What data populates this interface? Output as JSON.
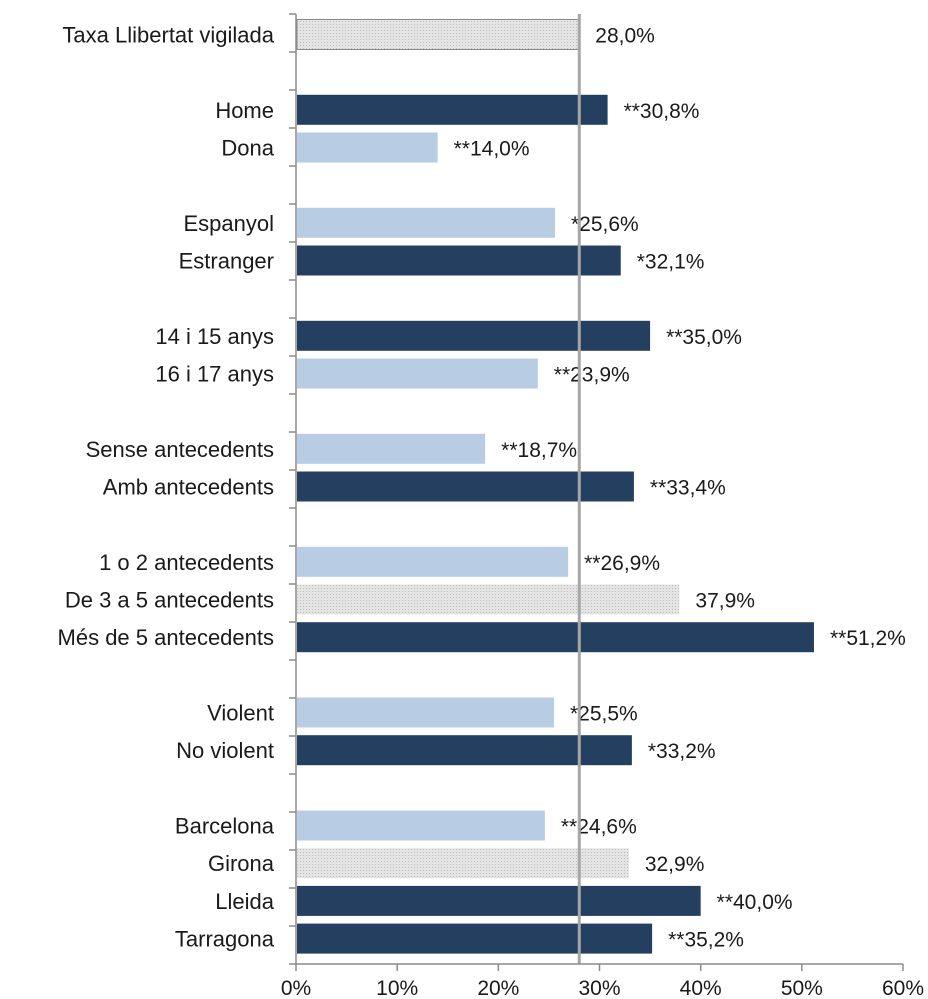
{
  "chart_data": {
    "type": "bar",
    "orientation": "horizontal",
    "categories": [
      "Taxa Llibertat vigilada",
      "Home",
      "Dona",
      "Espanyol",
      "Estranger",
      "14 i 15 anys",
      "16 i 17 anys",
      "Sense antecedents",
      "Amb antecedents",
      "1 o 2 antecedents",
      "De 3 a 5 antecedents",
      "Més de 5 antecedents",
      "Violent",
      "No violent",
      "Barcelona",
      "Girona",
      "Lleida",
      "Tarragona"
    ],
    "values": [
      28.0,
      30.8,
      14.0,
      25.6,
      32.1,
      35.0,
      23.9,
      18.7,
      33.4,
      26.9,
      37.9,
      51.2,
      25.5,
      33.2,
      24.6,
      32.9,
      40.0,
      35.2
    ],
    "value_labels": [
      "28,0%",
      "**30,8%",
      "**14,0%",
      "*25,6%",
      "*32,1%",
      "**35,0%",
      "**23,9%",
      "**18,7%",
      "**33,4%",
      "**26,9%",
      "37,9%",
      "**51,2%",
      "*25,5%",
      "*33,2%",
      "**24,6%",
      "32,9%",
      "**40,0%",
      "**35,2%"
    ],
    "bar_style": [
      "reference",
      "above",
      "below",
      "below",
      "above",
      "above",
      "below",
      "below",
      "above",
      "below",
      "neutral",
      "above",
      "below",
      "above",
      "below",
      "neutral",
      "above",
      "above"
    ],
    "groups": [
      [
        0
      ],
      [
        1,
        2
      ],
      [
        3,
        4
      ],
      [
        5,
        6
      ],
      [
        7,
        8
      ],
      [
        9,
        10,
        11
      ],
      [
        12,
        13
      ],
      [
        14,
        15,
        16,
        17
      ]
    ],
    "reference_line": 28.0,
    "xlim": [
      0,
      60
    ],
    "xticks": [
      0,
      10,
      20,
      30,
      40,
      50,
      60
    ],
    "xtick_labels": [
      "0%",
      "10%",
      "20%",
      "30%",
      "40%",
      "50%",
      "60%"
    ],
    "title": "",
    "xlabel": "",
    "ylabel": "",
    "legend": "none",
    "grid": false,
    "colors": {
      "above": "#243f60",
      "below": "#b8cce4",
      "neutral": "#d9d9d9",
      "reference": "#d9d9d9",
      "reference_line": "#a6a6a6",
      "axis": "#8c8c8c"
    }
  }
}
